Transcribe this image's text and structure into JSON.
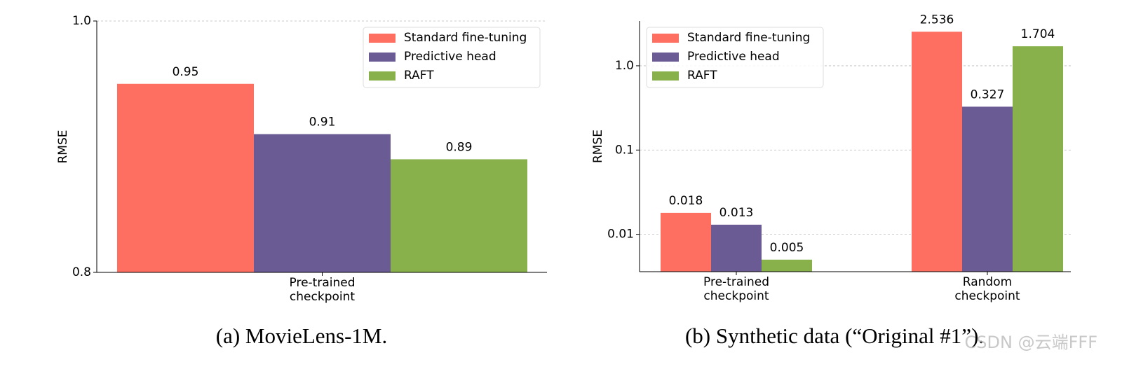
{
  "chart_data": [
    {
      "type": "bar",
      "caption": "(a) MovieLens-1M.",
      "ylabel": "RMSE",
      "categories": [
        "Pre-trained checkpoint"
      ],
      "series": [
        {
          "name": "Standard fine-tuning",
          "color": "#ff6f61",
          "values": [
            0.95
          ]
        },
        {
          "name": "Predictive head",
          "color": "#6b5b95",
          "values": [
            0.91
          ]
        },
        {
          "name": "RAFT",
          "color": "#88b04b",
          "values": [
            0.89
          ]
        }
      ],
      "ylim": [
        0.8,
        1.0
      ],
      "yticks": [
        0.8,
        {
          "value": 1.0,
          "label": "1.0"
        }
      ],
      "grid": true,
      "legend": "upper right"
    },
    {
      "type": "bar",
      "caption": "(b) Synthetic data (“Original #1”).",
      "ylabel": "RMSE",
      "categories": [
        "Pre-trained checkpoint",
        "Random checkpoint"
      ],
      "series": [
        {
          "name": "Standard fine-tuning",
          "color": "#ff6f61",
          "values": [
            0.018,
            2.536
          ]
        },
        {
          "name": "Predictive head",
          "color": "#6b5b95",
          "values": [
            0.013,
            0.327
          ]
        },
        {
          "name": "RAFT",
          "color": "#88b04b",
          "values": [
            0.005,
            1.704
          ]
        }
      ],
      "yscale": "log",
      "ylim": [
        0.0036,
        3.4
      ],
      "yticks": [
        0.01,
        0.1,
        {
          "value": 1.0,
          "label": "1.0"
        }
      ],
      "grid": true,
      "legend": "upper left"
    }
  ],
  "watermark": "CSDN @云端FFF"
}
